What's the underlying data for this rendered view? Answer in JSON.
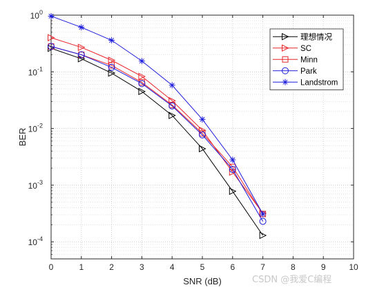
{
  "chart_data": {
    "type": "line",
    "title": "",
    "xlabel": "SNR (dB)",
    "ylabel": "BER",
    "xlim": [
      0,
      10
    ],
    "ylim": [
      5e-05,
      1
    ],
    "yscale": "log",
    "grid": "on (major and minor, dotted)",
    "legend_position": "top-right",
    "x_ticks": [
      "0",
      "1",
      "2",
      "3",
      "4",
      "5",
      "6",
      "7",
      "8",
      "9",
      "10"
    ],
    "y_ticks": [
      {
        "value": 1,
        "base": "10",
        "exp": "0"
      },
      {
        "value": 0.1,
        "base": "10",
        "exp": "-1"
      },
      {
        "value": 0.01,
        "base": "10",
        "exp": "-2"
      },
      {
        "value": 0.001,
        "base": "10",
        "exp": "-3"
      },
      {
        "value": 0.0001,
        "base": "10",
        "exp": "-4"
      }
    ],
    "x": [
      0,
      1,
      2,
      3,
      4,
      5,
      6,
      7
    ],
    "series": [
      {
        "name": "理想情况",
        "color": "#000000",
        "marker": "triangle-right",
        "values": [
          0.26,
          0.17,
          0.095,
          0.045,
          0.017,
          0.0044,
          0.00078,
          0.00013
        ]
      },
      {
        "name": "SC",
        "color": "#e8262b",
        "marker": "triangle-right",
        "values": [
          0.4,
          0.27,
          0.16,
          0.083,
          0.031,
          0.0093,
          0.0017,
          0.00032
        ]
      },
      {
        "name": "Minn",
        "color": "#e8262b",
        "marker": "square",
        "values": [
          0.28,
          0.2,
          0.13,
          0.065,
          0.026,
          0.0082,
          0.0021,
          0.00031
        ]
      },
      {
        "name": "Park",
        "color": "#1a1adb",
        "marker": "circle",
        "values": [
          0.28,
          0.2,
          0.12,
          0.062,
          0.025,
          0.0077,
          0.0019,
          0.00023
        ]
      },
      {
        "name": "Landstrom",
        "color": "#1a1adb",
        "marker": "asterisk",
        "values": [
          0.96,
          0.61,
          0.36,
          0.155,
          0.058,
          0.0145,
          0.0028,
          0.00031
        ]
      }
    ]
  },
  "watermark": "CSDN @我爱C编程"
}
